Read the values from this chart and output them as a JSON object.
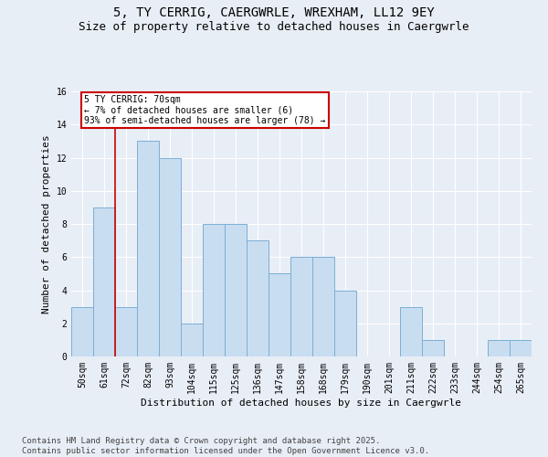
{
  "title1": "5, TY CERRIG, CAERGWRLE, WREXHAM, LL12 9EY",
  "title2": "Size of property relative to detached houses in Caergwrle",
  "xlabel": "Distribution of detached houses by size in Caergwrle",
  "ylabel": "Number of detached properties",
  "categories": [
    "50sqm",
    "61sqm",
    "72sqm",
    "82sqm",
    "93sqm",
    "104sqm",
    "115sqm",
    "125sqm",
    "136sqm",
    "147sqm",
    "158sqm",
    "168sqm",
    "179sqm",
    "190sqm",
    "201sqm",
    "211sqm",
    "222sqm",
    "233sqm",
    "244sqm",
    "254sqm",
    "265sqm"
  ],
  "values": [
    3,
    9,
    3,
    13,
    12,
    2,
    8,
    8,
    7,
    5,
    6,
    6,
    4,
    0,
    0,
    3,
    1,
    0,
    0,
    1,
    1
  ],
  "bar_color": "#c9ddf0",
  "bar_edge_color": "#7aafd6",
  "red_line_x": 1.5,
  "annotation_text": "5 TY CERRIG: 70sqm\n← 7% of detached houses are smaller (6)\n93% of semi-detached houses are larger (78) →",
  "annotation_box_color": "#ffffff",
  "annotation_box_edge_color": "#cc0000",
  "ylim": [
    0,
    16
  ],
  "yticks": [
    0,
    2,
    4,
    6,
    8,
    10,
    12,
    14,
    16
  ],
  "footer": "Contains HM Land Registry data © Crown copyright and database right 2025.\nContains public sector information licensed under the Open Government Licence v3.0.",
  "background_color": "#e8eef6",
  "grid_color": "#ffffff",
  "title_fontsize": 10,
  "subtitle_fontsize": 9,
  "axis_label_fontsize": 8,
  "tick_fontsize": 7,
  "annotation_fontsize": 7,
  "footer_fontsize": 6.5
}
